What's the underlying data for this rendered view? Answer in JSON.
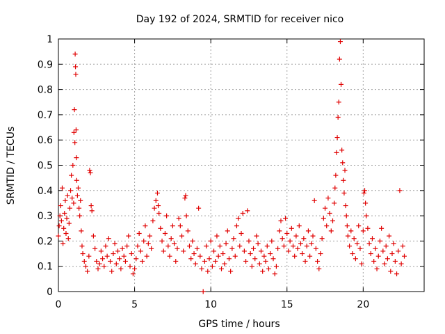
{
  "chart_data": {
    "type": "scatter",
    "title": "Day 192 of 2024, SRMTID for receiver nico",
    "xlabel": "GPS time / hours",
    "ylabel": "SRMTID / TECUs",
    "xlim": [
      0,
      24
    ],
    "ylim": [
      0,
      1
    ],
    "xticks": [
      0,
      5,
      10,
      15,
      20
    ],
    "xtick_labels": [
      "0",
      "5",
      "10",
      "15",
      "20"
    ],
    "yticks": [
      0,
      0.1,
      0.2,
      0.3,
      0.4,
      0.5,
      0.6,
      0.7,
      0.8,
      0.9,
      1.0
    ],
    "ytick_labels": [
      "0",
      "0.1",
      "0.2",
      "0.3",
      "0.4",
      "0.5",
      "0.6",
      "0.7",
      "0.8",
      "0.9",
      "1"
    ],
    "grid": true,
    "marker": "+",
    "color": "#e00000",
    "series": [
      {
        "name": "SRMTID",
        "points": [
          [
            0.0,
            0.22
          ],
          [
            0.05,
            0.26
          ],
          [
            0.1,
            0.3
          ],
          [
            0.15,
            0.34
          ],
          [
            0.2,
            0.28
          ],
          [
            0.25,
            0.41
          ],
          [
            0.3,
            0.19
          ],
          [
            0.35,
            0.25
          ],
          [
            0.4,
            0.31
          ],
          [
            0.45,
            0.36
          ],
          [
            0.5,
            0.23
          ],
          [
            0.55,
            0.29
          ],
          [
            0.6,
            0.38
          ],
          [
            0.65,
            0.21
          ],
          [
            0.7,
            0.27
          ],
          [
            0.75,
            0.33
          ],
          [
            0.8,
            0.4
          ],
          [
            0.85,
            0.46
          ],
          [
            0.9,
            0.37
          ],
          [
            0.95,
            0.5
          ],
          [
            1.0,
            0.35
          ],
          [
            1.02,
            0.63
          ],
          [
            1.05,
            0.72
          ],
          [
            1.08,
            0.59
          ],
          [
            1.1,
            0.94
          ],
          [
            1.12,
            0.89
          ],
          [
            1.14,
            0.86
          ],
          [
            1.16,
            0.64
          ],
          [
            1.18,
            0.53
          ],
          [
            1.2,
            0.44
          ],
          [
            1.25,
            0.38
          ],
          [
            1.3,
            0.41
          ],
          [
            1.35,
            0.33
          ],
          [
            1.4,
            0.3
          ],
          [
            1.45,
            0.36
          ],
          [
            1.5,
            0.24
          ],
          [
            1.55,
            0.18
          ],
          [
            1.6,
            0.15
          ],
          [
            1.7,
            0.12
          ],
          [
            1.8,
            0.1
          ],
          [
            1.9,
            0.08
          ],
          [
            2.0,
            0.14
          ],
          [
            2.05,
            0.48
          ],
          [
            2.1,
            0.47
          ],
          [
            2.15,
            0.34
          ],
          [
            2.2,
            0.32
          ],
          [
            2.3,
            0.22
          ],
          [
            2.4,
            0.17
          ],
          [
            2.5,
            0.12
          ],
          [
            2.6,
            0.09
          ],
          [
            2.7,
            0.11
          ],
          [
            2.8,
            0.16
          ],
          [
            2.9,
            0.13
          ],
          [
            3.0,
            0.1
          ],
          [
            3.1,
            0.18
          ],
          [
            3.2,
            0.14
          ],
          [
            3.3,
            0.21
          ],
          [
            3.4,
            0.12
          ],
          [
            3.5,
            0.08
          ],
          [
            3.6,
            0.15
          ],
          [
            3.7,
            0.19
          ],
          [
            3.8,
            0.11
          ],
          [
            3.9,
            0.16
          ],
          [
            4.0,
            0.13
          ],
          [
            4.1,
            0.09
          ],
          [
            4.2,
            0.17
          ],
          [
            4.3,
            0.14
          ],
          [
            4.4,
            0.12
          ],
          [
            4.5,
            0.18
          ],
          [
            4.6,
            0.22
          ],
          [
            4.7,
            0.1
          ],
          [
            4.8,
            0.15
          ],
          [
            4.9,
            0.07
          ],
          [
            5.0,
            0.09
          ],
          [
            5.1,
            0.13
          ],
          [
            5.2,
            0.18
          ],
          [
            5.3,
            0.23
          ],
          [
            5.4,
            0.16
          ],
          [
            5.5,
            0.12
          ],
          [
            5.6,
            0.2
          ],
          [
            5.7,
            0.26
          ],
          [
            5.8,
            0.14
          ],
          [
            5.9,
            0.19
          ],
          [
            6.0,
            0.22
          ],
          [
            6.1,
            0.17
          ],
          [
            6.2,
            0.28
          ],
          [
            6.3,
            0.33
          ],
          [
            6.4,
            0.36
          ],
          [
            6.5,
            0.39
          ],
          [
            6.55,
            0.34
          ],
          [
            6.6,
            0.31
          ],
          [
            6.7,
            0.25
          ],
          [
            6.8,
            0.2
          ],
          [
            6.9,
            0.16
          ],
          [
            7.0,
            0.23
          ],
          [
            7.1,
            0.3
          ],
          [
            7.2,
            0.18
          ],
          [
            7.3,
            0.14
          ],
          [
            7.4,
            0.21
          ],
          [
            7.5,
            0.26
          ],
          [
            7.6,
            0.19
          ],
          [
            7.7,
            0.12
          ],
          [
            7.8,
            0.17
          ],
          [
            7.9,
            0.29
          ],
          [
            8.0,
            0.26
          ],
          [
            8.1,
            0.22
          ],
          [
            8.2,
            0.16
          ],
          [
            8.3,
            0.37
          ],
          [
            8.35,
            0.38
          ],
          [
            8.4,
            0.3
          ],
          [
            8.5,
            0.24
          ],
          [
            8.6,
            0.18
          ],
          [
            8.7,
            0.13
          ],
          [
            8.8,
            0.2
          ],
          [
            8.9,
            0.15
          ],
          [
            9.0,
            0.11
          ],
          [
            9.1,
            0.17
          ],
          [
            9.2,
            0.33
          ],
          [
            9.3,
            0.14
          ],
          [
            9.4,
            0.09
          ],
          [
            9.5,
            0.0
          ],
          [
            9.6,
            0.12
          ],
          [
            9.7,
            0.18
          ],
          [
            9.8,
            0.08
          ],
          [
            9.9,
            0.13
          ],
          [
            10.0,
            0.2
          ],
          [
            10.1,
            0.1
          ],
          [
            10.2,
            0.16
          ],
          [
            10.3,
            0.12
          ],
          [
            10.4,
            0.22
          ],
          [
            10.5,
            0.14
          ],
          [
            10.6,
            0.18
          ],
          [
            10.7,
            0.09
          ],
          [
            10.8,
            0.15
          ],
          [
            10.9,
            0.11
          ],
          [
            11.0,
            0.19
          ],
          [
            11.1,
            0.24
          ],
          [
            11.2,
            0.13
          ],
          [
            11.3,
            0.08
          ],
          [
            11.4,
            0.17
          ],
          [
            11.5,
            0.21
          ],
          [
            11.6,
            0.14
          ],
          [
            11.7,
            0.26
          ],
          [
            11.8,
            0.29
          ],
          [
            11.9,
            0.18
          ],
          [
            12.0,
            0.23
          ],
          [
            12.1,
            0.31
          ],
          [
            12.2,
            0.16
          ],
          [
            12.3,
            0.12
          ],
          [
            12.4,
            0.32
          ],
          [
            12.5,
            0.2
          ],
          [
            12.6,
            0.15
          ],
          [
            12.7,
            0.1
          ],
          [
            12.8,
            0.17
          ],
          [
            12.9,
            0.13
          ],
          [
            13.0,
            0.22
          ],
          [
            13.1,
            0.19
          ],
          [
            13.2,
            0.11
          ],
          [
            13.3,
            0.16
          ],
          [
            13.4,
            0.08
          ],
          [
            13.5,
            0.14
          ],
          [
            13.6,
            0.12
          ],
          [
            13.7,
            0.18
          ],
          [
            13.8,
            0.09
          ],
          [
            13.9,
            0.15
          ],
          [
            14.0,
            0.2
          ],
          [
            14.1,
            0.13
          ],
          [
            14.2,
            0.07
          ],
          [
            14.3,
            0.1
          ],
          [
            14.4,
            0.17
          ],
          [
            14.5,
            0.24
          ],
          [
            14.6,
            0.28
          ],
          [
            14.7,
            0.21
          ],
          [
            14.8,
            0.18
          ],
          [
            14.9,
            0.29
          ],
          [
            15.0,
            0.23
          ],
          [
            15.1,
            0.16
          ],
          [
            15.2,
            0.2
          ],
          [
            15.3,
            0.25
          ],
          [
            15.4,
            0.18
          ],
          [
            15.5,
            0.14
          ],
          [
            15.6,
            0.22
          ],
          [
            15.7,
            0.17
          ],
          [
            15.8,
            0.26
          ],
          [
            15.9,
            0.19
          ],
          [
            16.0,
            0.15
          ],
          [
            16.1,
            0.21
          ],
          [
            16.2,
            0.12
          ],
          [
            16.3,
            0.18
          ],
          [
            16.4,
            0.24
          ],
          [
            16.5,
            0.14
          ],
          [
            16.6,
            0.19
          ],
          [
            16.7,
            0.22
          ],
          [
            16.8,
            0.36
          ],
          [
            16.9,
            0.17
          ],
          [
            17.0,
            0.12
          ],
          [
            17.1,
            0.09
          ],
          [
            17.2,
            0.15
          ],
          [
            17.3,
            0.21
          ],
          [
            17.4,
            0.29
          ],
          [
            17.5,
            0.33
          ],
          [
            17.6,
            0.26
          ],
          [
            17.7,
            0.37
          ],
          [
            17.8,
            0.31
          ],
          [
            17.9,
            0.24
          ],
          [
            18.0,
            0.28
          ],
          [
            18.1,
            0.35
          ],
          [
            18.15,
            0.41
          ],
          [
            18.2,
            0.46
          ],
          [
            18.25,
            0.55
          ],
          [
            18.3,
            0.61
          ],
          [
            18.35,
            0.69
          ],
          [
            18.4,
            0.75
          ],
          [
            18.45,
            0.92
          ],
          [
            18.5,
            0.99
          ],
          [
            18.55,
            0.82
          ],
          [
            18.6,
            0.56
          ],
          [
            18.65,
            0.51
          ],
          [
            18.7,
            0.44
          ],
          [
            18.75,
            0.39
          ],
          [
            18.8,
            0.48
          ],
          [
            18.85,
            0.34
          ],
          [
            18.9,
            0.3
          ],
          [
            18.95,
            0.26
          ],
          [
            19.0,
            0.22
          ],
          [
            19.1,
            0.18
          ],
          [
            19.2,
            0.24
          ],
          [
            19.3,
            0.15
          ],
          [
            19.4,
            0.21
          ],
          [
            19.5,
            0.13
          ],
          [
            19.6,
            0.19
          ],
          [
            19.7,
            0.26
          ],
          [
            19.8,
            0.17
          ],
          [
            19.9,
            0.11
          ],
          [
            20.0,
            0.24
          ],
          [
            20.05,
            0.39
          ],
          [
            20.1,
            0.4
          ],
          [
            20.15,
            0.35
          ],
          [
            20.2,
            0.3
          ],
          [
            20.3,
            0.25
          ],
          [
            20.4,
            0.19
          ],
          [
            20.5,
            0.15
          ],
          [
            20.6,
            0.21
          ],
          [
            20.7,
            0.12
          ],
          [
            20.8,
            0.17
          ],
          [
            20.9,
            0.09
          ],
          [
            21.0,
            0.14
          ],
          [
            21.1,
            0.2
          ],
          [
            21.2,
            0.25
          ],
          [
            21.3,
            0.16
          ],
          [
            21.4,
            0.11
          ],
          [
            21.5,
            0.18
          ],
          [
            21.6,
            0.13
          ],
          [
            21.7,
            0.22
          ],
          [
            21.8,
            0.08
          ],
          [
            21.9,
            0.15
          ],
          [
            22.0,
            0.19
          ],
          [
            22.1,
            0.12
          ],
          [
            22.2,
            0.07
          ],
          [
            22.3,
            0.16
          ],
          [
            22.4,
            0.4
          ],
          [
            22.5,
            0.11
          ],
          [
            22.6,
            0.18
          ],
          [
            22.7,
            0.14
          ]
        ]
      }
    ]
  }
}
